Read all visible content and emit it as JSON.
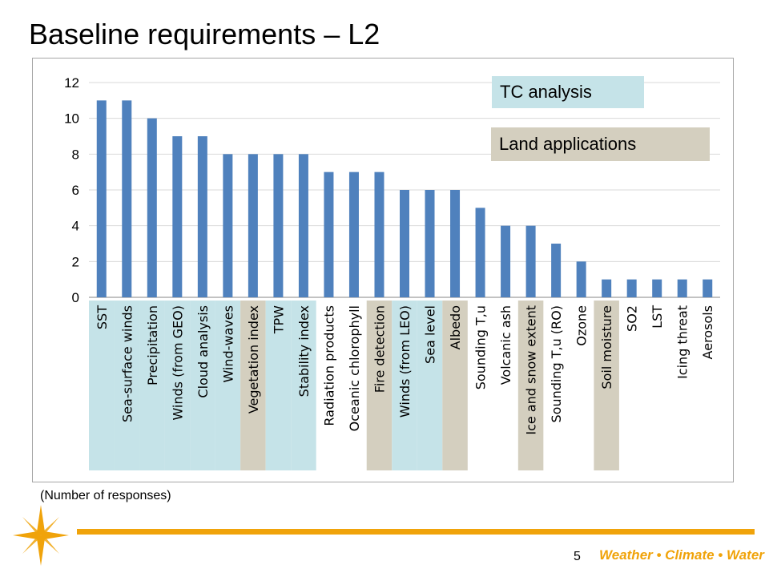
{
  "title": "Baseline requirements – L2",
  "footnote": "(Number of responses)",
  "page_number": "5",
  "footer_brand": "Weather • Climate • Water",
  "legend": {
    "tc_label": "TC analysis",
    "land_label": "Land applications"
  },
  "colors": {
    "bar": "#4f81bd",
    "tc": "#c5e3e8",
    "land": "#d4cfbf",
    "accent": "#f0a30a",
    "gridline": "#d9d9d9"
  },
  "chart_data": {
    "type": "bar",
    "categories": [
      "SST",
      "Sea-surface winds",
      "Precipitation",
      "Winds (from GEO)",
      "Cloud analysis",
      "Wind-waves",
      "Vegetation index",
      "TPW",
      "Stability index",
      "Radiation products",
      "Oceanic chlorophyll",
      "Fire detection",
      "Winds (from LEO)",
      "Sea level",
      "Albedo",
      "Sounding T,u",
      "Volcanic ash",
      "Ice and snow extent",
      "Sounding T,u (RO)",
      "Ozone",
      "Soil moisture",
      "SO2",
      "LST",
      "Icing threat",
      "Aerosols"
    ],
    "values": [
      11,
      11,
      10,
      9,
      9,
      8,
      8,
      8,
      8,
      7,
      7,
      7,
      6,
      6,
      6,
      5,
      4,
      4,
      3,
      2,
      1,
      1,
      1,
      1,
      1
    ],
    "ylim": [
      0,
      12
    ],
    "yticks": [
      0,
      2,
      4,
      6,
      8,
      10,
      12
    ],
    "highlight": [
      "tc",
      "tc",
      "tc",
      "tc",
      "tc",
      "tc",
      "land",
      "tc",
      "tc",
      "none",
      "none",
      "land",
      "tc",
      "tc",
      "land",
      "none",
      "none",
      "land",
      "none",
      "none",
      "land",
      "none",
      "none",
      "none",
      "none"
    ],
    "grid": true
  }
}
